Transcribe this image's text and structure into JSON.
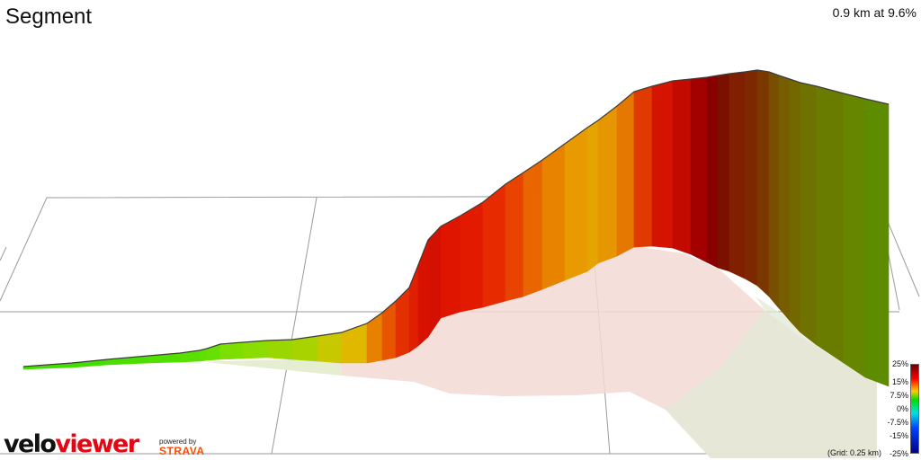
{
  "header": {
    "title": "Segment",
    "stat": "0.9 km at 9.6%"
  },
  "legend": {
    "scale_labels": [
      "25%",
      "15%",
      "7.5%",
      "0%",
      "-7.5%",
      "-15%",
      "-25%"
    ],
    "grid_note": "(Grid: 0.25 km)",
    "colors": {
      "steep": "#6b0000",
      "hard": "#e21100",
      "moderate": "#e5a400",
      "easy": "#99d200",
      "flat": "#00e000",
      "descent": "#0040ff"
    }
  },
  "branding": {
    "logo_part1": "velo",
    "logo_part2": "viewer",
    "powered_by": "powered by",
    "strava": "STRAVA",
    "logo_accent": "#e30613",
    "strava_color": "#fc4c02"
  }
}
